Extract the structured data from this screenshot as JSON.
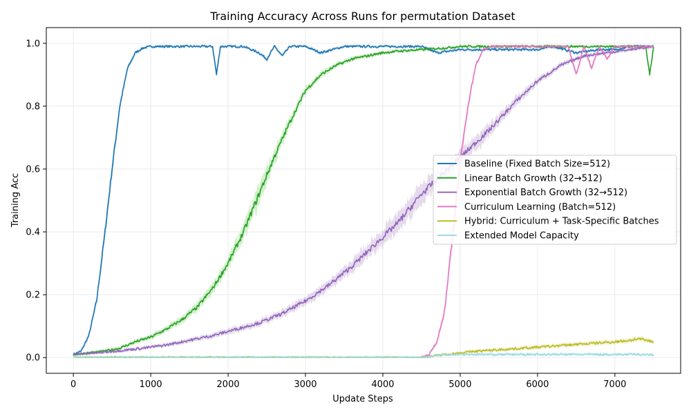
{
  "chart_data": {
    "type": "line",
    "title": "Training Accuracy Across Runs for permutation Dataset",
    "xlabel": "Update Steps",
    "ylabel": "Training Acc",
    "xlim": [
      -350,
      7850
    ],
    "ylim": [
      -0.05,
      1.05
    ],
    "xticks": [
      0,
      1000,
      2000,
      3000,
      4000,
      5000,
      6000,
      7000
    ],
    "yticks": [
      0.0,
      0.2,
      0.4,
      0.6,
      0.8,
      1.0
    ],
    "grid": true,
    "legend_position": "center-right",
    "series": [
      {
        "name": "Baseline (Fixed Batch Size=512)",
        "color": "#1f77b4",
        "band_color": "#aec7e8",
        "x": [
          0,
          100,
          200,
          300,
          400,
          500,
          600,
          700,
          800,
          900,
          1000,
          1200,
          1400,
          1600,
          1800,
          1850,
          1900,
          2000,
          2200,
          2400,
          2500,
          2600,
          2700,
          2800,
          3000,
          3200,
          3500,
          4000,
          4500,
          4700,
          5000,
          5500,
          6000,
          6200,
          6500,
          6800,
          7000,
          7200,
          7500
        ],
        "y": [
          0.01,
          0.02,
          0.07,
          0.18,
          0.38,
          0.6,
          0.8,
          0.92,
          0.97,
          0.985,
          0.99,
          0.99,
          0.99,
          0.99,
          0.99,
          0.9,
          0.99,
          0.99,
          0.99,
          0.97,
          0.95,
          0.99,
          0.96,
          0.99,
          0.99,
          0.97,
          0.99,
          0.99,
          0.99,
          0.97,
          0.98,
          0.98,
          0.98,
          0.99,
          0.97,
          0.98,
          0.98,
          0.99,
          0.99
        ]
      },
      {
        "name": "Linear Batch Growth (32→512)",
        "color": "#2ca02c",
        "band_color": "#98df8a",
        "x": [
          0,
          200,
          400,
          600,
          800,
          1000,
          1200,
          1400,
          1600,
          1800,
          2000,
          2200,
          2400,
          2600,
          2800,
          3000,
          3200,
          3400,
          3600,
          3800,
          4000,
          4200,
          4500,
          4800,
          5000,
          5200,
          5500,
          6000,
          6500,
          7000,
          7200,
          7400,
          7450,
          7500
        ],
        "y": [
          0.01,
          0.015,
          0.02,
          0.03,
          0.05,
          0.065,
          0.09,
          0.12,
          0.16,
          0.22,
          0.3,
          0.4,
          0.52,
          0.64,
          0.75,
          0.85,
          0.9,
          0.93,
          0.95,
          0.96,
          0.97,
          0.975,
          0.98,
          0.985,
          0.99,
          0.99,
          0.99,
          0.99,
          0.99,
          0.99,
          0.99,
          0.99,
          0.9,
          0.99
        ]
      },
      {
        "name": "Exponential Batch Growth (32→512)",
        "color": "#9467bd",
        "band_color": "#c5b0d5",
        "x": [
          0,
          300,
          600,
          900,
          1200,
          1500,
          1800,
          2100,
          2400,
          2700,
          3000,
          3300,
          3600,
          3900,
          4200,
          4500,
          4800,
          5100,
          5400,
          5700,
          6000,
          6300,
          6600,
          6900,
          7200,
          7500
        ],
        "y": [
          0.01,
          0.015,
          0.022,
          0.03,
          0.04,
          0.055,
          0.07,
          0.09,
          0.11,
          0.14,
          0.18,
          0.23,
          0.29,
          0.36,
          0.43,
          0.52,
          0.59,
          0.66,
          0.73,
          0.81,
          0.88,
          0.93,
          0.96,
          0.97,
          0.98,
          0.99
        ]
      },
      {
        "name": "Curriculum Learning (Batch=512)",
        "color": "#e377c2",
        "band_color": "#f7b6d2",
        "x": [
          4500,
          4600,
          4700,
          4800,
          4900,
          5000,
          5100,
          5200,
          5300,
          5400,
          5600,
          5800,
          6000,
          6200,
          6400,
          6500,
          6600,
          6700,
          6800,
          6900,
          7000,
          7200,
          7500
        ],
        "y": [
          0.0,
          0.01,
          0.05,
          0.15,
          0.38,
          0.62,
          0.8,
          0.93,
          0.98,
          0.99,
          0.99,
          0.99,
          0.99,
          0.99,
          0.99,
          0.9,
          0.99,
          0.92,
          0.99,
          0.95,
          0.99,
          0.99,
          0.99
        ]
      },
      {
        "name": "Hybrid: Curriculum + Task-Specific Batches",
        "color": "#bcbd22",
        "band_color": "#dbdb8d",
        "x": [
          0,
          4500,
          4800,
          5000,
          5200,
          5500,
          6000,
          6500,
          7000,
          7200,
          7300,
          7500
        ],
        "y": [
          0.0,
          0.0,
          0.01,
          0.015,
          0.02,
          0.025,
          0.033,
          0.042,
          0.05,
          0.055,
          0.06,
          0.05
        ]
      },
      {
        "name": "Extended Model Capacity",
        "color": "#9edae5",
        "band_color": "#c7ecf1",
        "x": [
          0,
          4500,
          4800,
          5000,
          5200,
          5500,
          6000,
          6500,
          7000,
          7400,
          7500
        ],
        "y": [
          0.0,
          0.0,
          0.01,
          0.01,
          0.01,
          0.01,
          0.01,
          0.01,
          0.01,
          0.01,
          0.008
        ]
      }
    ]
  }
}
